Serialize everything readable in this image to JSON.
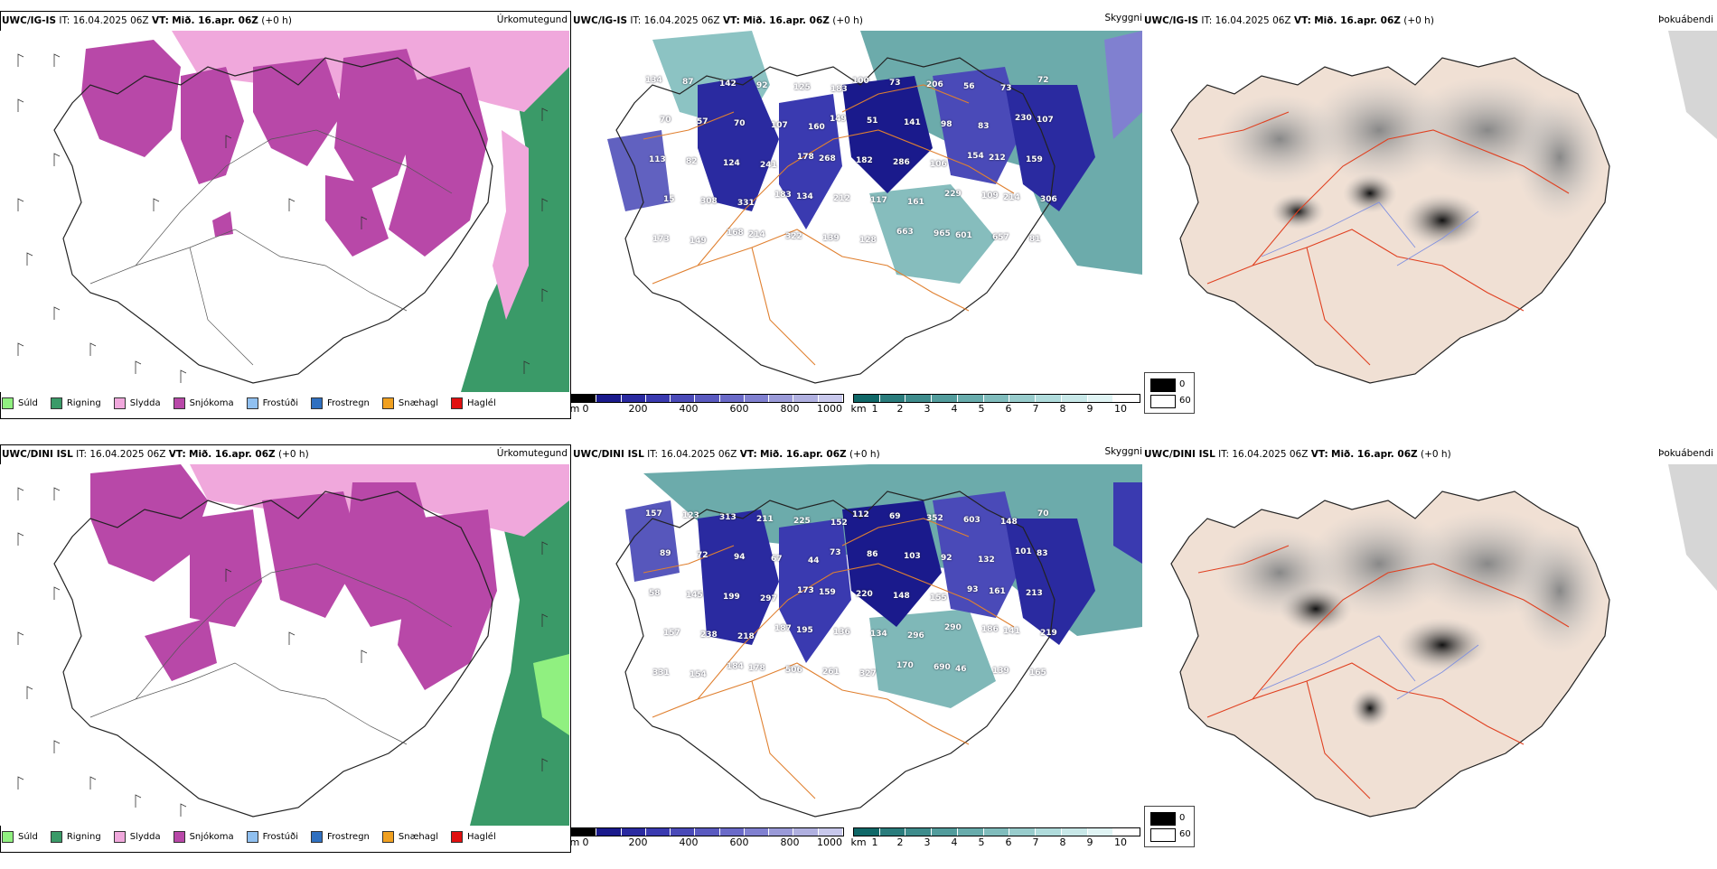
{
  "rows": [
    {
      "model": "UWC/IG-IS",
      "it_label": "IT:",
      "it_value": "16.04.2025 06Z",
      "vt_label": "VT:",
      "vt_value": "Mið. 16.apr. 06Z",
      "lead": "(+0 h)"
    },
    {
      "model": "UWC/DINI ISL",
      "it_label": "IT:",
      "it_value": "16.04.2025 06Z",
      "vt_label": "VT:",
      "vt_value": "Mið. 16.apr. 06Z",
      "lead": "(+0 h)"
    }
  ],
  "panel_titles": {
    "precip": "Úrkomutegund",
    "cloud": "Skyggni",
    "fog": "Þokuábendi"
  },
  "precip_legend": [
    {
      "label": "Súld",
      "color": "#90f080"
    },
    {
      "label": "Rigning",
      "color": "#3a9a68"
    },
    {
      "label": "Slydda",
      "color": "#f0a8dc"
    },
    {
      "label": "Snjókoma",
      "color": "#b848a8"
    },
    {
      "label": "Frostúði",
      "color": "#90c0f0"
    },
    {
      "label": "Frostregn",
      "color": "#3070c0"
    },
    {
      "label": "Snæhagl",
      "color": "#f0a020"
    },
    {
      "label": "Haglél",
      "color": "#e01010"
    }
  ],
  "cloud_base_bar": {
    "unit": "m",
    "ticks": [
      "0",
      "200",
      "400",
      "600",
      "800",
      "1000"
    ],
    "colors": [
      "#000000",
      "#1a1a8c",
      "#2a2aa0",
      "#3a3ab0",
      "#4a4ab8",
      "#5a5ac0",
      "#6a6ac8",
      "#8080d0",
      "#9a9ad8",
      "#b0b0e0",
      "#c8c8ec"
    ]
  },
  "visibility_bar": {
    "unit": "km",
    "ticks": [
      "1",
      "2",
      "3",
      "4",
      "5",
      "6",
      "7",
      "8",
      "9",
      "10"
    ],
    "colors": [
      "#106868",
      "#2a7c7c",
      "#3e8c8c",
      "#529c9c",
      "#68acac",
      "#80bcbc",
      "#98cccc",
      "#b0dcdc",
      "#c8e8e8",
      "#e0f4f4",
      "#ffffff"
    ]
  },
  "fog_legend": {
    "high": "0",
    "low": "60",
    "high_color": "#000000",
    "low_color": "#ffffff"
  },
  "cloud_labels_top": [
    "134",
    "87",
    "142",
    "92",
    "125",
    "183",
    "100",
    "73",
    "206",
    "56",
    "73",
    "72",
    "70",
    "57",
    "70",
    "107",
    "160",
    "149",
    "51",
    "141",
    "98",
    "83",
    "230",
    "107",
    "113",
    "82",
    "124",
    "241",
    "178",
    "268",
    "182",
    "286",
    "106",
    "154",
    "212",
    "159",
    "15",
    "308",
    "331",
    "183",
    "134",
    "212",
    "117",
    "161",
    "229",
    "109",
    "214",
    "306",
    "173",
    "149",
    "168",
    "214",
    "322",
    "139",
    "128",
    "663",
    "965",
    "601",
    "657",
    "81"
  ],
  "cloud_labels_bottom": [
    "157",
    "123",
    "313",
    "211",
    "225",
    "152",
    "112",
    "69",
    "352",
    "603",
    "148",
    "70",
    "89",
    "72",
    "94",
    "67",
    "44",
    "73",
    "86",
    "103",
    "92",
    "132",
    "101",
    "83",
    "58",
    "145",
    "199",
    "297",
    "173",
    "159",
    "220",
    "148",
    "155",
    "93",
    "161",
    "213",
    "157",
    "238",
    "218",
    "187",
    "195",
    "136",
    "134",
    "296",
    "290",
    "186",
    "141",
    "219",
    "331",
    "154",
    "184",
    "178",
    "506",
    "261",
    "327",
    "170",
    "690",
    "46",
    "139",
    "165"
  ]
}
